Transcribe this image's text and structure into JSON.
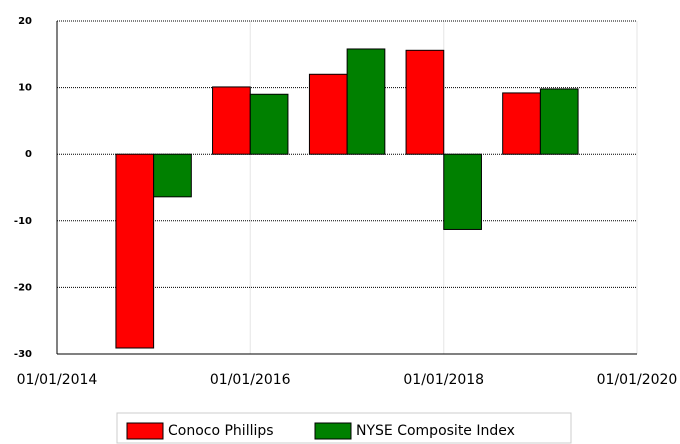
{
  "chart_data": {
    "type": "bar",
    "x": [
      "01/01/2015",
      "01/01/2016",
      "01/01/2017",
      "01/01/2018",
      "01/01/2019"
    ],
    "series": [
      {
        "name": "Conoco Phillips",
        "color": "#ff0000",
        "values": [
          -29.1,
          10.1,
          12.0,
          15.6,
          9.2
        ]
      },
      {
        "name": "NYSE Composite Index",
        "color": "#008000",
        "values": [
          -6.4,
          9.0,
          15.8,
          -11.3,
          9.8
        ]
      }
    ],
    "xlim": [
      "01/01/2014",
      "01/01/2020"
    ],
    "xticks": [
      "01/01/2014",
      "01/01/2016",
      "01/01/2018",
      "01/01/2020"
    ],
    "ylim": [
      -30,
      20
    ],
    "yticks": [
      -30,
      -20,
      -10,
      0,
      10,
      20
    ],
    "grid": true,
    "legend": "bottom"
  }
}
